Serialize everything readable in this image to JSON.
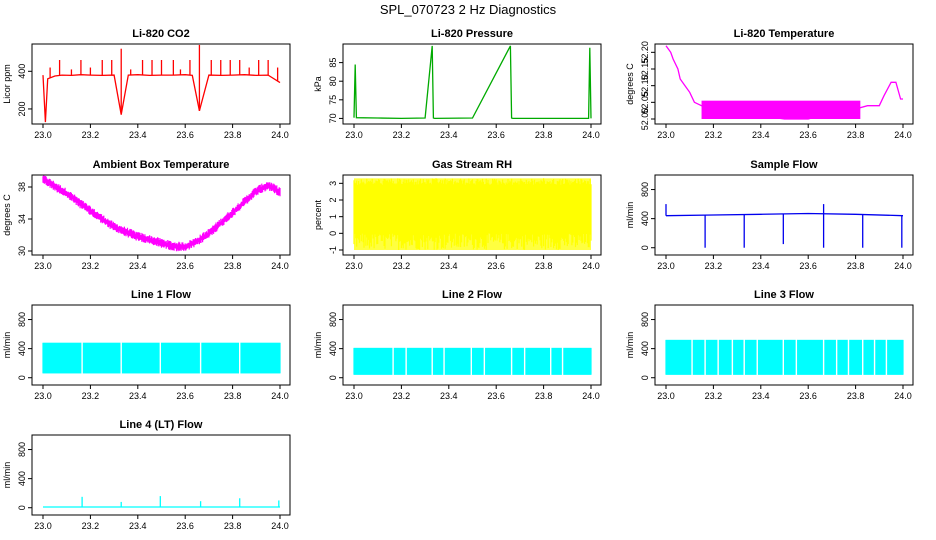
{
  "page": {
    "title": "SPL_070723  2 Hz Diagnostics"
  },
  "chart_data": [
    {
      "type": "line",
      "title": "Li-820 CO2",
      "xlabel": "",
      "ylabel": "Licor ppm",
      "x_range": [
        23.0,
        24.0
      ],
      "ylim": [
        120,
        545
      ],
      "x_ticks": [
        23.0,
        23.2,
        23.4,
        23.6,
        23.8,
        24.0
      ],
      "x_tick_labels": [
        "23.0",
        "23.2",
        "23.4",
        "23.6",
        "23.8",
        "24.0"
      ],
      "y_ticks": [
        200,
        400
      ],
      "y_tick_labels": [
        "200",
        "400"
      ],
      "color": "#ff0000",
      "series": [
        {
          "x": [
            23.0,
            23.01,
            23.02,
            23.05,
            23.08,
            23.12,
            23.16,
            23.2,
            23.25,
            23.3,
            23.33,
            23.36,
            23.4,
            23.45,
            23.5,
            23.55,
            23.6,
            23.63,
            23.66,
            23.7,
            23.75,
            23.8,
            23.85,
            23.9,
            23.95,
            24.0
          ],
          "y": [
            380,
            130,
            360,
            375,
            380,
            378,
            382,
            380,
            378,
            380,
            170,
            380,
            382,
            378,
            380,
            380,
            382,
            378,
            190,
            380,
            378,
            380,
            382,
            378,
            380,
            340
          ],
          "spikes_up": [
            {
              "x": 23.03,
              "y": 420
            },
            {
              "x": 23.07,
              "y": 460
            },
            {
              "x": 23.12,
              "y": 410
            },
            {
              "x": 23.16,
              "y": 460
            },
            {
              "x": 23.2,
              "y": 420
            },
            {
              "x": 23.25,
              "y": 460
            },
            {
              "x": 23.29,
              "y": 460
            },
            {
              "x": 23.33,
              "y": 520
            },
            {
              "x": 23.37,
              "y": 410
            },
            {
              "x": 23.42,
              "y": 460
            },
            {
              "x": 23.46,
              "y": 460
            },
            {
              "x": 23.5,
              "y": 460
            },
            {
              "x": 23.55,
              "y": 460
            },
            {
              "x": 23.58,
              "y": 410
            },
            {
              "x": 23.62,
              "y": 460
            },
            {
              "x": 23.66,
              "y": 540
            },
            {
              "x": 23.71,
              "y": 460
            },
            {
              "x": 23.75,
              "y": 460
            },
            {
              "x": 23.79,
              "y": 460
            },
            {
              "x": 23.83,
              "y": 460
            },
            {
              "x": 23.87,
              "y": 420
            },
            {
              "x": 23.91,
              "y": 460
            },
            {
              "x": 23.95,
              "y": 460
            },
            {
              "x": 23.99,
              "y": 420
            }
          ]
        }
      ]
    },
    {
      "type": "line",
      "title": "Li-820 Pressure",
      "xlabel": "",
      "ylabel": "kPa",
      "x_range": [
        23.0,
        24.0
      ],
      "ylim": [
        68.5,
        90
      ],
      "x_ticks": [
        23.0,
        23.2,
        23.4,
        23.6,
        23.8,
        24.0
      ],
      "x_tick_labels": [
        "23.0",
        "23.2",
        "23.4",
        "23.6",
        "23.8",
        "24.0"
      ],
      "y_ticks": [
        70,
        75,
        80,
        85
      ],
      "y_tick_labels": [
        "70",
        "75",
        "80",
        "85"
      ],
      "color": "#00aa00",
      "series": [
        {
          "x": [
            23.0,
            23.005,
            23.01,
            23.1,
            23.2,
            23.3,
            23.33,
            23.335,
            23.34,
            23.5,
            23.66,
            23.665,
            23.67,
            23.8,
            23.99,
            23.995,
            24.0
          ],
          "y": [
            70.2,
            84.5,
            70.2,
            70.1,
            70.0,
            70.1,
            89.5,
            70.1,
            70.0,
            70.1,
            89.5,
            70.1,
            70.0,
            70.0,
            70.0,
            89.0,
            70.0
          ]
        }
      ]
    },
    {
      "type": "line",
      "title": "Li-820 Temperature",
      "xlabel": "",
      "ylabel": "degrees C",
      "x_range": [
        23.0,
        24.0
      ],
      "ylim": [
        51.985,
        52.225
      ],
      "x_ticks": [
        23.0,
        23.2,
        23.4,
        23.6,
        23.8,
        24.0
      ],
      "x_tick_labels": [
        "23.0",
        "23.2",
        "23.4",
        "23.6",
        "23.8",
        "24.0"
      ],
      "y_ticks": [
        52.0,
        52.05,
        52.1,
        52.15,
        52.2
      ],
      "y_tick_labels": [
        "52.00",
        "52.05",
        "52.10",
        "52.15",
        "52.20"
      ],
      "color": "#ff00ff",
      "series": [
        {
          "x": [
            23.0,
            23.02,
            23.03,
            23.05,
            23.06,
            23.08,
            23.1,
            23.12,
            23.15,
            23.2,
            23.3,
            23.4,
            23.5,
            23.6,
            23.7,
            23.8,
            23.85,
            23.9,
            23.92,
            23.95,
            23.97,
            23.99,
            24.0
          ],
          "y": [
            52.22,
            52.2,
            52.18,
            52.15,
            52.12,
            52.1,
            52.08,
            52.05,
            52.04,
            52.02,
            52.02,
            52.01,
            52.0,
            52.0,
            52.02,
            52.03,
            52.04,
            52.04,
            52.07,
            52.11,
            52.11,
            52.06,
            52.06
          ],
          "band": {
            "x_from": 23.15,
            "x_to": 23.82,
            "low": 52.0,
            "high": 52.055
          }
        }
      ]
    },
    {
      "type": "line",
      "title": "Ambient Box Temperature",
      "xlabel": "",
      "ylabel": "degrees C",
      "x_range": [
        23.0,
        24.0
      ],
      "ylim": [
        29.5,
        39.5
      ],
      "x_ticks": [
        23.0,
        23.2,
        23.4,
        23.6,
        23.8,
        24.0
      ],
      "x_tick_labels": [
        "23.0",
        "23.2",
        "23.4",
        "23.6",
        "23.8",
        "24.0"
      ],
      "y_ticks": [
        30,
        34,
        38
      ],
      "y_tick_labels": [
        "30",
        "34",
        "38"
      ],
      "color": "#ff00ff",
      "series": [
        {
          "x": [
            23.0,
            23.1,
            23.2,
            23.3,
            23.4,
            23.5,
            23.55,
            23.6,
            23.65,
            23.7,
            23.8,
            23.9,
            23.95,
            24.0
          ],
          "y": [
            39.0,
            37.2,
            35.0,
            33.0,
            31.8,
            31.0,
            30.6,
            30.5,
            31.2,
            32.2,
            34.8,
            37.5,
            38.2,
            37.4
          ],
          "noise_halfwidth": 0.6
        }
      ]
    },
    {
      "type": "line",
      "title": "Gas Stream RH",
      "xlabel": "",
      "ylabel": "percent",
      "x_range": [
        23.0,
        24.0
      ],
      "ylim": [
        -1.3,
        3.5
      ],
      "x_ticks": [
        23.0,
        23.2,
        23.4,
        23.6,
        23.8,
        24.0
      ],
      "x_tick_labels": [
        "23.0",
        "23.2",
        "23.4",
        "23.6",
        "23.8",
        "24.0"
      ],
      "y_ticks": [
        -1,
        0,
        1,
        2,
        3
      ],
      "y_tick_labels": [
        "-1",
        "0",
        "1",
        "2",
        "3"
      ],
      "color": "#ffff00",
      "series": [
        {
          "x": [
            23.0,
            24.0
          ],
          "band_low": -1.0,
          "band_high": 3.3,
          "core_low": 0.0,
          "core_high": 2.9
        }
      ]
    },
    {
      "type": "line",
      "title": "Sample Flow",
      "xlabel": "",
      "ylabel": "ml/min",
      "x_range": [
        23.0,
        24.0
      ],
      "ylim": [
        -100,
        1000
      ],
      "x_ticks": [
        23.0,
        23.2,
        23.4,
        23.6,
        23.8,
        24.0
      ],
      "x_tick_labels": [
        "23.0",
        "23.2",
        "23.4",
        "23.6",
        "23.8",
        "24.0"
      ],
      "y_ticks": [
        0,
        400,
        800
      ],
      "y_tick_labels": [
        "0",
        "400",
        "800"
      ],
      "color": "#0000ee",
      "series": [
        {
          "x": [
            23.0,
            23.2,
            23.4,
            23.6,
            23.8,
            24.0
          ],
          "y": [
            440,
            450,
            460,
            470,
            460,
            440
          ],
          "dips": [
            {
              "x": 23.0,
              "y": 600
            },
            {
              "x": 23.165,
              "y": 0
            },
            {
              "x": 23.33,
              "y": 0
            },
            {
              "x": 23.495,
              "y": 50
            },
            {
              "x": 23.665,
              "y": 0
            },
            {
              "x": 23.83,
              "y": 0
            },
            {
              "x": 23.995,
              "y": 0
            }
          ],
          "peaks": [
            {
              "x": 23.665,
              "y": 600
            }
          ]
        }
      ]
    },
    {
      "type": "line",
      "title": "Line 1 Flow",
      "xlabel": "",
      "ylabel": "ml/min",
      "x_range": [
        23.0,
        24.0
      ],
      "ylim": [
        -100,
        1000
      ],
      "x_ticks": [
        23.0,
        23.2,
        23.4,
        23.6,
        23.8,
        24.0
      ],
      "x_tick_labels": [
        "23.0",
        "23.2",
        "23.4",
        "23.6",
        "23.8",
        "24.0"
      ],
      "y_ticks": [
        0,
        400,
        800
      ],
      "y_tick_labels": [
        "0",
        "400",
        "800"
      ],
      "color": "#00ffff",
      "series": [
        {
          "x": [
            23.0,
            24.0
          ],
          "band_low": 60,
          "band_high": 480,
          "gaps": [
            23.165,
            23.33,
            23.495,
            23.665,
            23.83
          ]
        }
      ]
    },
    {
      "type": "line",
      "title": "Line 2 Flow",
      "xlabel": "",
      "ylabel": "ml/min",
      "x_range": [
        23.0,
        24.0
      ],
      "ylim": [
        -100,
        1000
      ],
      "x_ticks": [
        23.0,
        23.2,
        23.4,
        23.6,
        23.8,
        24.0
      ],
      "x_tick_labels": [
        "23.0",
        "23.2",
        "23.4",
        "23.6",
        "23.8",
        "24.0"
      ],
      "y_ticks": [
        0,
        400,
        800
      ],
      "y_tick_labels": [
        "0",
        "400",
        "800"
      ],
      "color": "#00ffff",
      "series": [
        {
          "x": [
            23.0,
            24.0
          ],
          "band_low": 40,
          "band_high": 410,
          "gaps": [
            23.165,
            23.22,
            23.33,
            23.38,
            23.495,
            23.55,
            23.665,
            23.72,
            23.83,
            23.88
          ]
        }
      ]
    },
    {
      "type": "line",
      "title": "Line 3 Flow",
      "xlabel": "",
      "ylabel": "ml/min",
      "x_range": [
        23.0,
        24.0
      ],
      "ylim": [
        -100,
        1000
      ],
      "x_ticks": [
        23.0,
        23.2,
        23.4,
        23.6,
        23.8,
        24.0
      ],
      "x_tick_labels": [
        "23.0",
        "23.2",
        "23.4",
        "23.6",
        "23.8",
        "24.0"
      ],
      "y_ticks": [
        0,
        400,
        800
      ],
      "y_tick_labels": [
        "0",
        "400",
        "800"
      ],
      "color": "#00ffff",
      "series": [
        {
          "x": [
            23.0,
            24.0
          ],
          "band_low": 40,
          "band_high": 520,
          "gaps": [
            23.11,
            23.165,
            23.22,
            23.28,
            23.33,
            23.385,
            23.495,
            23.55,
            23.665,
            23.72,
            23.77,
            23.83,
            23.88,
            23.93
          ]
        }
      ]
    },
    {
      "type": "line",
      "title": "Line 4 (LT) Flow",
      "xlabel": "",
      "ylabel": "ml/min",
      "x_range": [
        23.0,
        24.0
      ],
      "ylim": [
        -100,
        1000
      ],
      "x_ticks": [
        23.0,
        23.2,
        23.4,
        23.6,
        23.8,
        24.0
      ],
      "x_tick_labels": [
        "23.0",
        "23.2",
        "23.4",
        "23.6",
        "23.8",
        "24.0"
      ],
      "y_ticks": [
        0,
        400,
        800
      ],
      "y_tick_labels": [
        "0",
        "400",
        "800"
      ],
      "color": "#00ffff",
      "series": [
        {
          "x": [
            23.0,
            24.0
          ],
          "y": [
            10,
            10
          ],
          "spikes_up": [
            {
              "x": 23.165,
              "y": 150
            },
            {
              "x": 23.33,
              "y": 80
            },
            {
              "x": 23.495,
              "y": 160
            },
            {
              "x": 23.665,
              "y": 90
            },
            {
              "x": 23.83,
              "y": 130
            },
            {
              "x": 23.995,
              "y": 100
            }
          ]
        }
      ]
    }
  ]
}
